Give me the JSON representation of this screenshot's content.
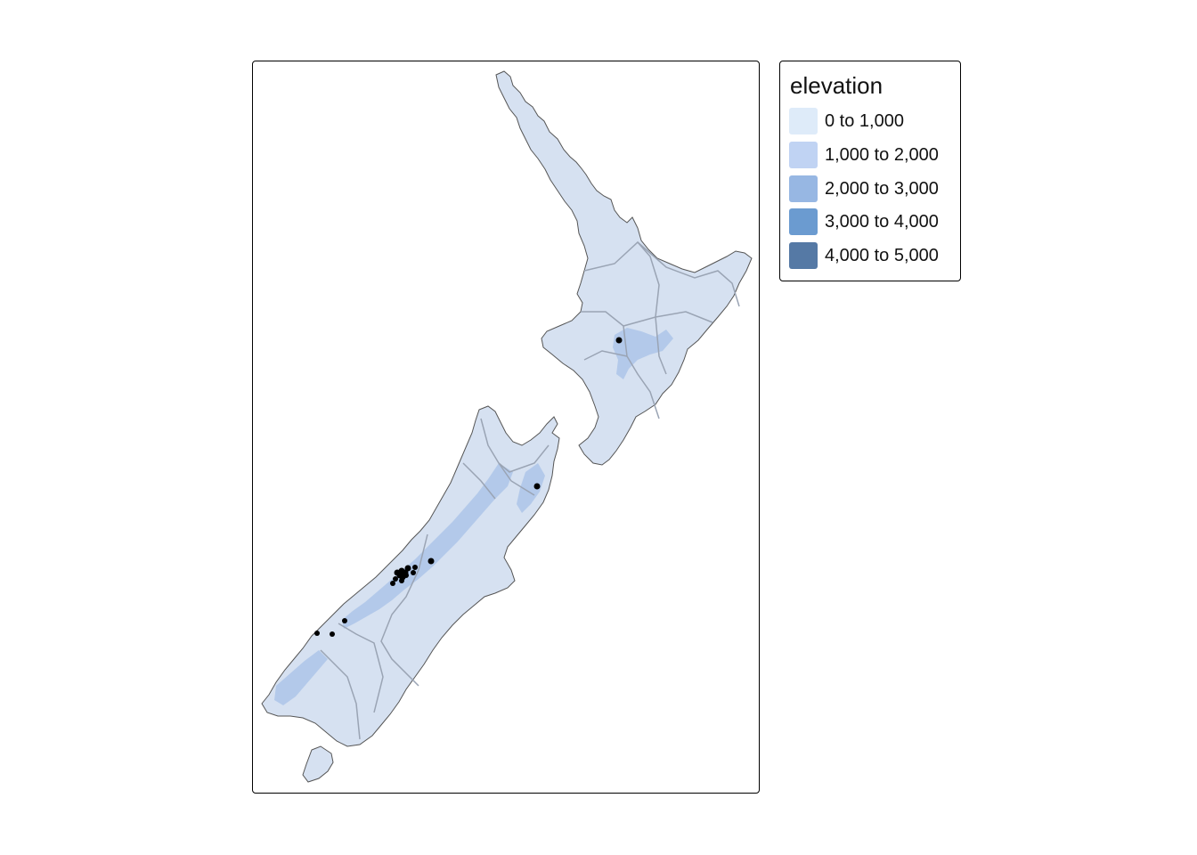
{
  "legend": {
    "title": "elevation",
    "items": [
      {
        "label": "0 to 1,000",
        "color": "#deebf9"
      },
      {
        "label": "1,000 to 2,000",
        "color": "#c0d3f3"
      },
      {
        "label": "2,000 to 3,000",
        "color": "#97b7e3"
      },
      {
        "label": "3,000 to 4,000",
        "color": "#6b9bd0"
      },
      {
        "label": "4,000 to 5,000",
        "color": "#5579a5"
      }
    ]
  },
  "colors": {
    "land": "#d6e1f1",
    "coast": "#555555",
    "boundaries": "#9aa4b4",
    "highland": "#97b7e3",
    "points": "#000000"
  }
}
